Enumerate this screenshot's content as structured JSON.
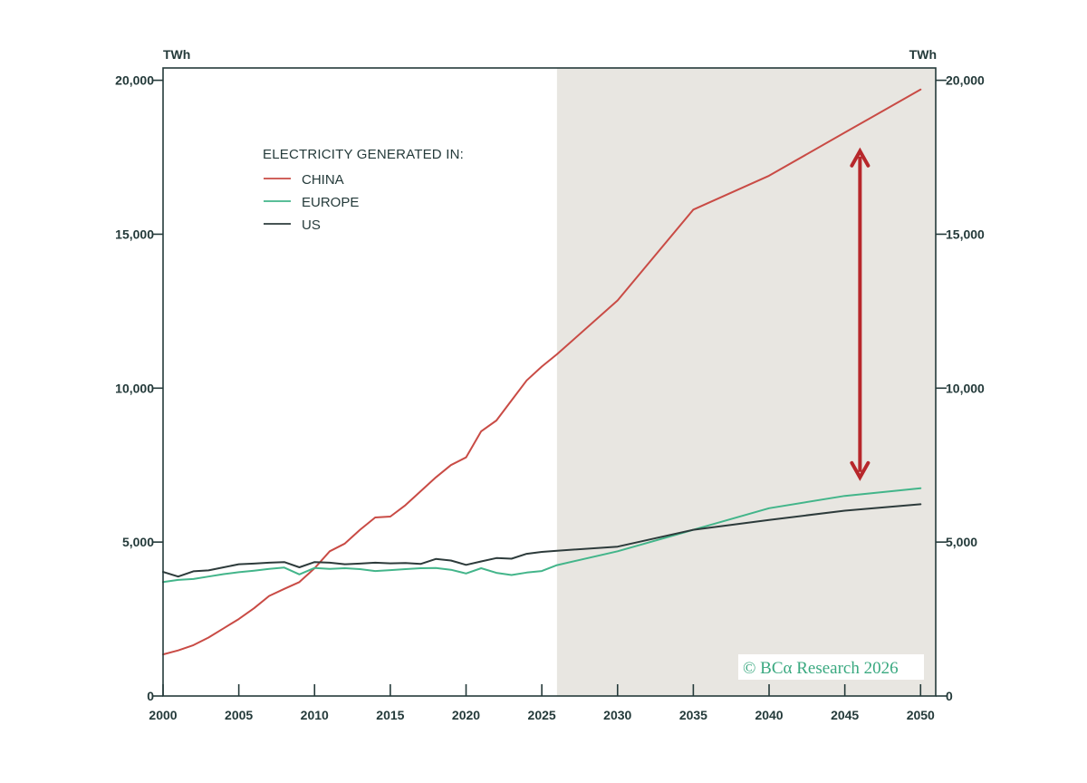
{
  "chart_data": {
    "type": "line",
    "y_unit_left": "TWh",
    "y_unit_right": "TWh",
    "xlim": [
      2000,
      2051
    ],
    "ylim": [
      0,
      20400
    ],
    "x_ticks": [
      2000,
      2005,
      2010,
      2015,
      2020,
      2025,
      2030,
      2035,
      2040,
      2045,
      2050
    ],
    "y_ticks": [
      0,
      5000,
      10000,
      15000,
      20000
    ],
    "y_tick_labels": [
      "0",
      "5,000",
      "10,000",
      "15,000",
      "20,000"
    ],
    "x_tick_labels": [
      "2000",
      "2005",
      "2010",
      "2015",
      "2020",
      "2025",
      "2030",
      "2035",
      "2040",
      "2045",
      "2050"
    ],
    "projection_shading": {
      "from_x": 2026,
      "to_x": 2051,
      "color": "#e8e6e1"
    },
    "legend": {
      "title": "ELECTRICITY GENERATED IN:",
      "position": "top-left"
    },
    "series": [
      {
        "name": "CHINA",
        "color": "#c94b45",
        "x": [
          2000,
          2001,
          2002,
          2003,
          2004,
          2005,
          2006,
          2007,
          2008,
          2009,
          2010,
          2011,
          2012,
          2013,
          2014,
          2015,
          2016,
          2017,
          2018,
          2019,
          2020,
          2021,
          2022,
          2023,
          2024,
          2025,
          2026,
          2030,
          2035,
          2040,
          2045,
          2050
        ],
        "values": [
          1350,
          1480,
          1650,
          1900,
          2200,
          2500,
          2850,
          3250,
          3480,
          3700,
          4150,
          4700,
          4950,
          5400,
          5800,
          5830,
          6200,
          6650,
          7100,
          7500,
          7750,
          8600,
          8950,
          9600,
          10250,
          10700,
          11100,
          12850,
          15800,
          16900,
          18300,
          19700
        ]
      },
      {
        "name": "EUROPE",
        "color": "#43b58a",
        "x": [
          2000,
          2001,
          2002,
          2003,
          2004,
          2005,
          2006,
          2007,
          2008,
          2009,
          2010,
          2011,
          2012,
          2013,
          2014,
          2015,
          2016,
          2017,
          2018,
          2019,
          2020,
          2021,
          2022,
          2023,
          2024,
          2025,
          2026,
          2030,
          2035,
          2040,
          2045,
          2050
        ],
        "values": [
          3700,
          3770,
          3800,
          3880,
          3960,
          4020,
          4070,
          4130,
          4170,
          3950,
          4160,
          4130,
          4150,
          4120,
          4060,
          4090,
          4120,
          4150,
          4160,
          4100,
          3980,
          4150,
          4000,
          3930,
          4010,
          4060,
          4250,
          4700,
          5400,
          6100,
          6500,
          6750
        ]
      },
      {
        "name": "US",
        "color": "#2d3b3b",
        "x": [
          2000,
          2001,
          2002,
          2003,
          2004,
          2005,
          2006,
          2007,
          2008,
          2009,
          2010,
          2011,
          2012,
          2013,
          2014,
          2015,
          2016,
          2017,
          2018,
          2019,
          2020,
          2021,
          2022,
          2023,
          2024,
          2025,
          2026,
          2030,
          2035,
          2040,
          2045,
          2050
        ],
        "values": [
          4030,
          3880,
          4050,
          4080,
          4180,
          4280,
          4300,
          4330,
          4350,
          4180,
          4350,
          4330,
          4280,
          4300,
          4330,
          4310,
          4320,
          4290,
          4450,
          4400,
          4260,
          4370,
          4480,
          4460,
          4620,
          4680,
          4720,
          4850,
          5400,
          5720,
          6020,
          6230
        ]
      }
    ],
    "annotation": {
      "type": "double-arrow",
      "x": 2046,
      "from_value": 7100,
      "to_value": 17700,
      "color": "#b7272b"
    },
    "watermark": "© BCα Research 2026"
  }
}
